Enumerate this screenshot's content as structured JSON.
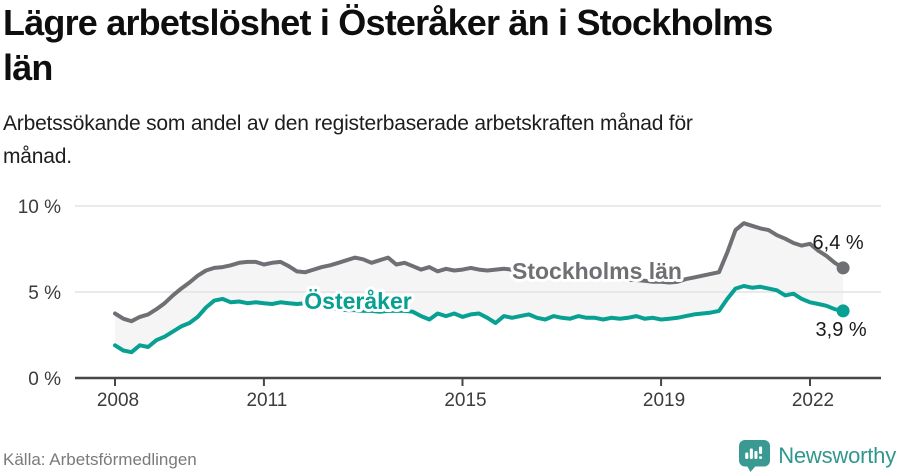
{
  "chart_data": {
    "type": "line",
    "title": "Lägre arbetslöshet i Österåker än i Stockholms län",
    "title_lines": [
      "Lägre arbetslöshet i Österåker än i Stockholms",
      "län"
    ],
    "subtitle_lines": [
      "Arbetssökande som andel av den registerbaserade arbetskraften månad för",
      "månad."
    ],
    "unit": "%",
    "x_start_year": 2008,
    "x_step_months": 2,
    "x_ticks": [
      2008,
      2011,
      2015,
      2019,
      2022
    ],
    "y_ticks": [
      {
        "value": 0,
        "label": "0 %"
      },
      {
        "value": 5,
        "label": "5 %"
      },
      {
        "value": 10,
        "label": "10 %"
      }
    ],
    "ylim": [
      0,
      10.5
    ],
    "grid": true,
    "legend_position": "inline-labels",
    "band_fill": "#f5f5f6",
    "series": [
      {
        "name": "Stockholms län",
        "color": "#6e7073",
        "end_label": "6,4 %",
        "end_value": 6.4,
        "values": [
          3.75,
          3.45,
          3.3,
          3.55,
          3.7,
          4.0,
          4.35,
          4.8,
          5.2,
          5.55,
          5.95,
          6.25,
          6.4,
          6.45,
          6.55,
          6.7,
          6.75,
          6.75,
          6.6,
          6.7,
          6.75,
          6.5,
          6.2,
          6.15,
          6.3,
          6.45,
          6.55,
          6.7,
          6.85,
          7.0,
          6.9,
          6.7,
          6.85,
          7.0,
          6.6,
          6.7,
          6.5,
          6.3,
          6.45,
          6.2,
          6.35,
          6.25,
          6.3,
          6.4,
          6.3,
          6.25,
          6.3,
          6.35,
          6.3,
          6.28,
          6.2,
          6.15,
          6.1,
          6.05,
          6.0,
          5.95,
          5.9,
          5.9,
          5.85,
          5.8,
          5.75,
          5.75,
          5.7,
          5.7,
          5.65,
          5.6,
          5.6,
          5.55,
          5.6,
          5.75,
          5.85,
          5.95,
          6.05,
          6.15,
          7.3,
          8.6,
          9.0,
          8.85,
          8.7,
          8.6,
          8.3,
          8.1,
          7.85,
          7.7,
          7.8,
          7.4,
          7.1,
          6.7,
          6.4
        ]
      },
      {
        "name": "Österåker",
        "color": "#08a092",
        "end_label": "3,9 %",
        "end_value": 3.9,
        "values": [
          1.9,
          1.6,
          1.5,
          1.9,
          1.8,
          2.2,
          2.4,
          2.7,
          3.0,
          3.2,
          3.55,
          4.1,
          4.5,
          4.6,
          4.4,
          4.45,
          4.35,
          4.4,
          4.35,
          4.3,
          4.4,
          4.35,
          4.3,
          4.35,
          4.2,
          4.15,
          4.1,
          4.0,
          3.95,
          3.95,
          3.9,
          3.9,
          3.85,
          3.9,
          3.9,
          3.9,
          3.85,
          3.6,
          3.4,
          3.75,
          3.6,
          3.75,
          3.55,
          3.7,
          3.75,
          3.5,
          3.2,
          3.6,
          3.5,
          3.6,
          3.7,
          3.5,
          3.4,
          3.6,
          3.5,
          3.45,
          3.6,
          3.5,
          3.5,
          3.4,
          3.5,
          3.45,
          3.5,
          3.6,
          3.45,
          3.5,
          3.4,
          3.45,
          3.5,
          3.6,
          3.7,
          3.75,
          3.8,
          3.9,
          4.6,
          5.2,
          5.35,
          5.25,
          5.3,
          5.2,
          5.1,
          4.8,
          4.9,
          4.6,
          4.4,
          4.3,
          4.2,
          4.0,
          3.9
        ]
      }
    ],
    "styles": {
      "grid_color": "#e3e3e5",
      "axis_color": "#47474a",
      "tick_text_color": "#3c3c3c",
      "value_label_color": "#1a1a1a"
    }
  },
  "footer": {
    "source": "Källa: Arbetsförmedlingen",
    "brand": "Newsworthy",
    "brand_color": "#2f978e"
  }
}
